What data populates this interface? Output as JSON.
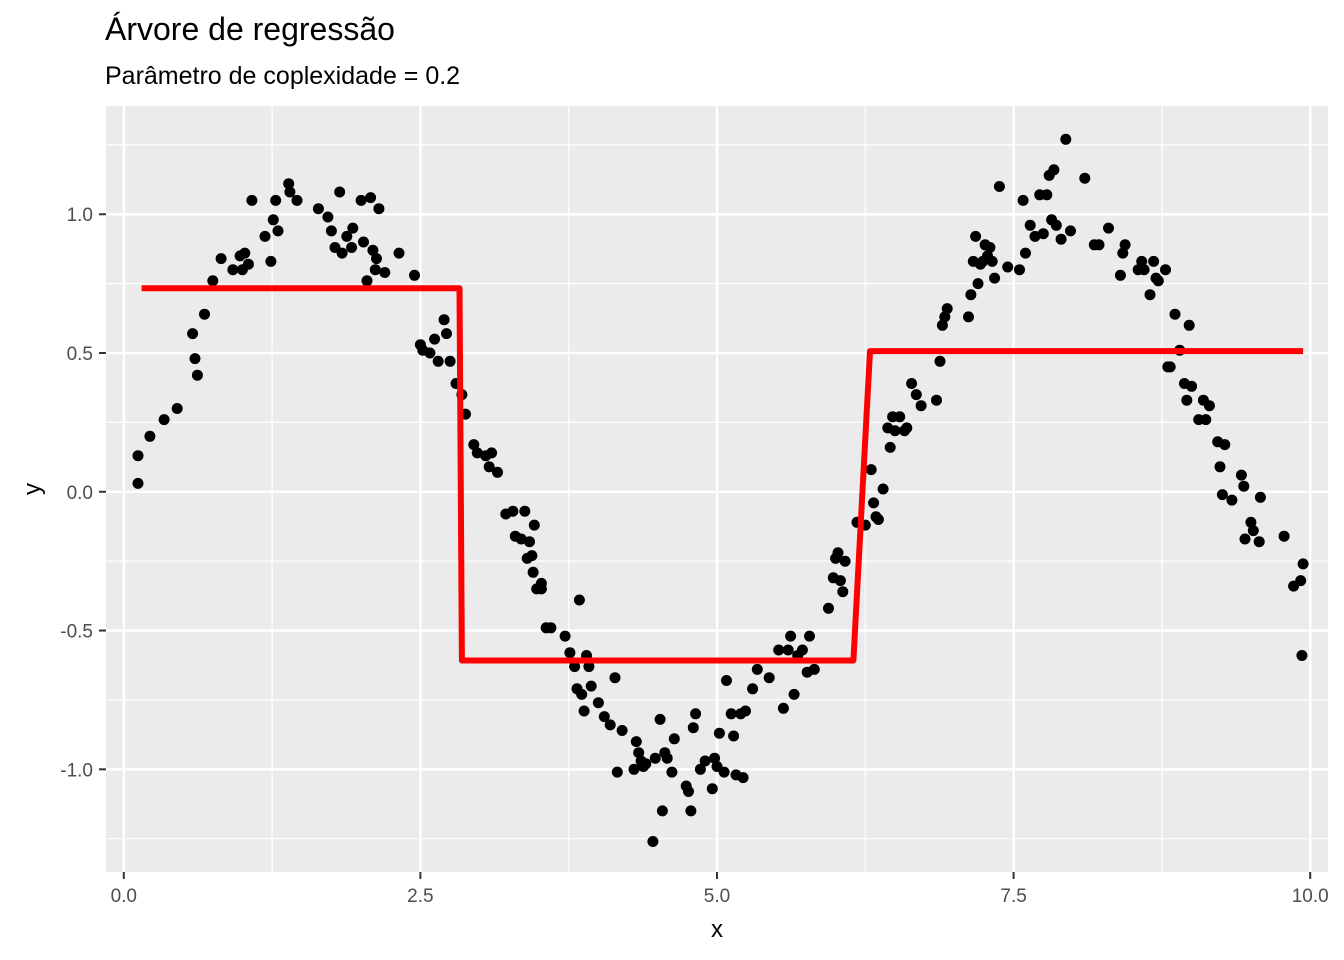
{
  "chart_data": {
    "type": "scatter",
    "title": "Árvore de regressão",
    "subtitle": "Parâmetro de coplexidade = 0.2",
    "xlabel": "x",
    "ylabel": "y",
    "xlim": [
      -0.15,
      10.15
    ],
    "ylim": [
      -1.37,
      1.39
    ],
    "x_ticks": [
      {
        "value": 0,
        "label": "0.0"
      },
      {
        "value": 2.5,
        "label": "2.5"
      },
      {
        "value": 5,
        "label": "5.0"
      },
      {
        "value": 7.5,
        "label": "7.5"
      },
      {
        "value": 10,
        "label": "10.0"
      }
    ],
    "y_ticks": [
      {
        "value": -1,
        "label": "-1.0"
      },
      {
        "value": -0.5,
        "label": "-0.5"
      },
      {
        "value": 0,
        "label": "0.0"
      },
      {
        "value": 0.5,
        "label": "0.5"
      },
      {
        "value": 1,
        "label": "1.0"
      }
    ],
    "grid": true,
    "colors": {
      "panel": "#ebebeb",
      "grid": "#ffffff",
      "points": "#000000",
      "fit_line": "#ff0000"
    },
    "points": [
      [
        0.12,
        0.13
      ],
      [
        0.12,
        0.03
      ],
      [
        0.22,
        0.2
      ],
      [
        0.34,
        0.26
      ],
      [
        0.45,
        0.3
      ],
      [
        0.58,
        0.57
      ],
      [
        0.6,
        0.48
      ],
      [
        0.62,
        0.42
      ],
      [
        0.68,
        0.64
      ],
      [
        0.75,
        0.76
      ],
      [
        0.82,
        0.84
      ],
      [
        0.92,
        0.8
      ],
      [
        0.98,
        0.85
      ],
      [
        1.0,
        0.8
      ],
      [
        1.02,
        0.86
      ],
      [
        1.05,
        0.82
      ],
      [
        1.08,
        1.05
      ],
      [
        1.19,
        0.92
      ],
      [
        1.24,
        0.83
      ],
      [
        1.26,
        0.98
      ],
      [
        1.28,
        1.05
      ],
      [
        1.3,
        0.94
      ],
      [
        1.39,
        1.11
      ],
      [
        1.4,
        1.08
      ],
      [
        1.46,
        1.05
      ],
      [
        1.64,
        1.02
      ],
      [
        1.72,
        0.99
      ],
      [
        1.75,
        0.94
      ],
      [
        1.78,
        0.88
      ],
      [
        1.82,
        1.08
      ],
      [
        1.84,
        0.86
      ],
      [
        1.88,
        0.92
      ],
      [
        1.92,
        0.88
      ],
      [
        1.93,
        0.95
      ],
      [
        2.0,
        1.05
      ],
      [
        2.02,
        0.9
      ],
      [
        2.05,
        0.76
      ],
      [
        2.08,
        1.06
      ],
      [
        2.1,
        0.87
      ],
      [
        2.12,
        0.8
      ],
      [
        2.13,
        0.84
      ],
      [
        2.15,
        1.02
      ],
      [
        2.2,
        0.79
      ],
      [
        2.32,
        0.86
      ],
      [
        2.45,
        0.78
      ],
      [
        2.5,
        0.53
      ],
      [
        2.52,
        0.51
      ],
      [
        2.58,
        0.5
      ],
      [
        2.62,
        0.55
      ],
      [
        2.65,
        0.47
      ],
      [
        2.7,
        0.62
      ],
      [
        2.72,
        0.57
      ],
      [
        2.75,
        0.47
      ],
      [
        2.8,
        0.39
      ],
      [
        2.85,
        0.35
      ],
      [
        2.88,
        0.28
      ],
      [
        2.95,
        0.17
      ],
      [
        2.98,
        0.14
      ],
      [
        3.05,
        0.13
      ],
      [
        3.08,
        0.09
      ],
      [
        3.1,
        0.14
      ],
      [
        3.15,
        0.07
      ],
      [
        3.22,
        -0.08
      ],
      [
        3.28,
        -0.07
      ],
      [
        3.3,
        -0.16
      ],
      [
        3.35,
        -0.17
      ],
      [
        3.38,
        -0.07
      ],
      [
        3.4,
        -0.24
      ],
      [
        3.42,
        -0.18
      ],
      [
        3.44,
        -0.23
      ],
      [
        3.45,
        -0.29
      ],
      [
        3.46,
        -0.12
      ],
      [
        3.48,
        -0.35
      ],
      [
        3.52,
        -0.33
      ],
      [
        3.52,
        -0.35
      ],
      [
        3.56,
        -0.49
      ],
      [
        3.6,
        -0.49
      ],
      [
        3.72,
        -0.52
      ],
      [
        3.76,
        -0.58
      ],
      [
        3.8,
        -0.63
      ],
      [
        3.82,
        -0.71
      ],
      [
        3.84,
        -0.39
      ],
      [
        3.86,
        -0.73
      ],
      [
        3.88,
        -0.79
      ],
      [
        3.9,
        -0.59
      ],
      [
        3.92,
        -0.63
      ],
      [
        3.94,
        -0.7
      ],
      [
        4.0,
        -0.76
      ],
      [
        4.05,
        -0.81
      ],
      [
        4.1,
        -0.84
      ],
      [
        4.14,
        -0.67
      ],
      [
        4.16,
        -1.01
      ],
      [
        4.2,
        -0.86
      ],
      [
        4.3,
        -1.0
      ],
      [
        4.32,
        -0.9
      ],
      [
        4.34,
        -0.94
      ],
      [
        4.36,
        -0.97
      ],
      [
        4.38,
        -0.99
      ],
      [
        4.4,
        -0.98
      ],
      [
        4.46,
        -1.26
      ],
      [
        4.48,
        -0.96
      ],
      [
        4.52,
        -0.82
      ],
      [
        4.54,
        -1.15
      ],
      [
        4.56,
        -0.94
      ],
      [
        4.58,
        -0.96
      ],
      [
        4.62,
        -1.01
      ],
      [
        4.64,
        -0.89
      ],
      [
        4.74,
        -1.06
      ],
      [
        4.76,
        -1.08
      ],
      [
        4.78,
        -1.15
      ],
      [
        4.8,
        -0.85
      ],
      [
        4.82,
        -0.8
      ],
      [
        4.86,
        -1.0
      ],
      [
        4.9,
        -0.97
      ],
      [
        4.96,
        -1.07
      ],
      [
        4.98,
        -0.96
      ],
      [
        5.0,
        -0.99
      ],
      [
        5.02,
        -0.87
      ],
      [
        5.06,
        -1.01
      ],
      [
        5.08,
        -0.68
      ],
      [
        5.12,
        -0.8
      ],
      [
        5.14,
        -0.88
      ],
      [
        5.16,
        -1.02
      ],
      [
        5.2,
        -0.8
      ],
      [
        5.22,
        -1.03
      ],
      [
        5.24,
        -0.79
      ],
      [
        5.3,
        -0.71
      ],
      [
        5.34,
        -0.64
      ],
      [
        5.44,
        -0.67
      ],
      [
        5.52,
        -0.57
      ],
      [
        5.56,
        -0.78
      ],
      [
        5.6,
        -0.57
      ],
      [
        5.62,
        -0.52
      ],
      [
        5.65,
        -0.73
      ],
      [
        5.68,
        -0.59
      ],
      [
        5.72,
        -0.57
      ],
      [
        5.76,
        -0.65
      ],
      [
        5.78,
        -0.52
      ],
      [
        5.82,
        -0.64
      ],
      [
        5.94,
        -0.42
      ],
      [
        5.98,
        -0.31
      ],
      [
        6.0,
        -0.24
      ],
      [
        6.02,
        -0.22
      ],
      [
        6.04,
        -0.32
      ],
      [
        6.06,
        -0.36
      ],
      [
        6.08,
        -0.25
      ],
      [
        6.18,
        -0.11
      ],
      [
        6.25,
        -0.12
      ],
      [
        6.3,
        0.08
      ],
      [
        6.32,
        -0.04
      ],
      [
        6.34,
        -0.09
      ],
      [
        6.36,
        -0.1
      ],
      [
        6.4,
        0.01
      ],
      [
        6.44,
        0.23
      ],
      [
        6.46,
        0.16
      ],
      [
        6.48,
        0.27
      ],
      [
        6.5,
        0.22
      ],
      [
        6.54,
        0.27
      ],
      [
        6.58,
        0.22
      ],
      [
        6.6,
        0.23
      ],
      [
        6.64,
        0.39
      ],
      [
        6.68,
        0.35
      ],
      [
        6.72,
        0.31
      ],
      [
        6.85,
        0.33
      ],
      [
        6.88,
        0.47
      ],
      [
        6.9,
        0.6
      ],
      [
        6.92,
        0.63
      ],
      [
        6.94,
        0.66
      ],
      [
        7.12,
        0.63
      ],
      [
        7.14,
        0.71
      ],
      [
        7.16,
        0.83
      ],
      [
        7.18,
        0.92
      ],
      [
        7.2,
        0.75
      ],
      [
        7.22,
        0.82
      ],
      [
        7.24,
        0.83
      ],
      [
        7.26,
        0.89
      ],
      [
        7.28,
        0.85
      ],
      [
        7.3,
        0.88
      ],
      [
        7.32,
        0.83
      ],
      [
        7.34,
        0.77
      ],
      [
        7.38,
        1.1
      ],
      [
        7.45,
        0.81
      ],
      [
        7.55,
        0.8
      ],
      [
        7.58,
        1.05
      ],
      [
        7.6,
        0.86
      ],
      [
        7.64,
        0.96
      ],
      [
        7.68,
        0.92
      ],
      [
        7.72,
        1.07
      ],
      [
        7.75,
        0.93
      ],
      [
        7.78,
        1.07
      ],
      [
        7.8,
        1.14
      ],
      [
        7.82,
        0.98
      ],
      [
        7.84,
        1.16
      ],
      [
        7.86,
        0.96
      ],
      [
        7.9,
        0.91
      ],
      [
        7.94,
        1.27
      ],
      [
        7.98,
        0.94
      ],
      [
        8.1,
        1.13
      ],
      [
        8.18,
        0.89
      ],
      [
        8.22,
        0.89
      ],
      [
        8.3,
        0.95
      ],
      [
        8.4,
        0.78
      ],
      [
        8.42,
        0.86
      ],
      [
        8.44,
        0.89
      ],
      [
        8.55,
        0.8
      ],
      [
        8.58,
        0.83
      ],
      [
        8.6,
        0.8
      ],
      [
        8.65,
        0.71
      ],
      [
        8.68,
        0.83
      ],
      [
        8.7,
        0.77
      ],
      [
        8.72,
        0.76
      ],
      [
        8.78,
        0.8
      ],
      [
        8.8,
        0.45
      ],
      [
        8.82,
        0.45
      ],
      [
        8.86,
        0.64
      ],
      [
        8.9,
        0.51
      ],
      [
        8.94,
        0.39
      ],
      [
        8.96,
        0.33
      ],
      [
        8.98,
        0.6
      ],
      [
        9.0,
        0.38
      ],
      [
        9.06,
        0.26
      ],
      [
        9.1,
        0.33
      ],
      [
        9.12,
        0.26
      ],
      [
        9.15,
        0.31
      ],
      [
        9.22,
        0.18
      ],
      [
        9.24,
        0.09
      ],
      [
        9.26,
        -0.01
      ],
      [
        9.28,
        0.17
      ],
      [
        9.34,
        -0.03
      ],
      [
        9.42,
        0.06
      ],
      [
        9.44,
        0.02
      ],
      [
        9.45,
        -0.17
      ],
      [
        9.5,
        -0.11
      ],
      [
        9.52,
        -0.14
      ],
      [
        9.57,
        -0.18
      ],
      [
        9.58,
        -0.02
      ],
      [
        9.78,
        -0.16
      ],
      [
        9.86,
        -0.34
      ],
      [
        9.92,
        -0.32
      ],
      [
        9.93,
        -0.59
      ],
      [
        9.94,
        -0.26
      ]
    ],
    "fit_line": {
      "type": "step",
      "x": [
        0.15,
        2.83,
        2.85,
        6.15,
        6.29,
        9.94
      ],
      "y": [
        0.733,
        0.733,
        -0.608,
        -0.608,
        0.507,
        0.507
      ]
    }
  }
}
